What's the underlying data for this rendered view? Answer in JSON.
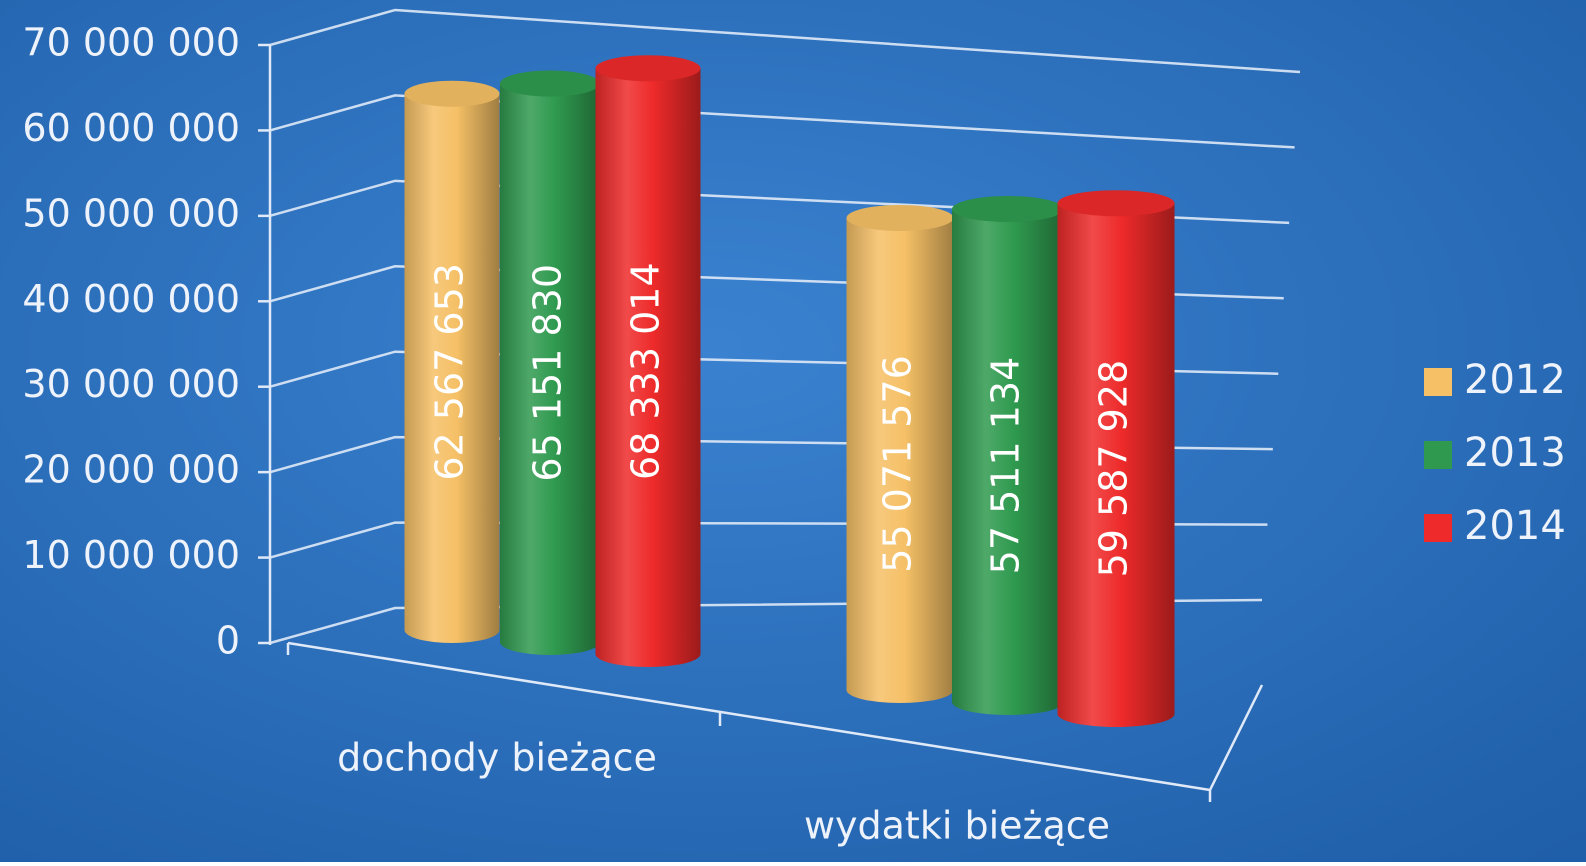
{
  "chart_data": {
    "type": "bar3d",
    "categories": [
      "dochody bieżące",
      "wydatki bieżące"
    ],
    "series": [
      {
        "name": "2012",
        "color": "#f5c066",
        "values": [
          62567653,
          55071576
        ],
        "value_labels": [
          "62 567 653",
          "55 071 576"
        ]
      },
      {
        "name": "2013",
        "color": "#2f9a4f",
        "values": [
          65151830,
          57511134
        ],
        "value_labels": [
          "65 151 830",
          "57 511 134"
        ]
      },
      {
        "name": "2014",
        "color": "#ee2a2a",
        "values": [
          68333014,
          59587928
        ],
        "value_labels": [
          "68 333 014",
          "59 587 928"
        ]
      }
    ],
    "ylim": [
      0,
      70000000
    ],
    "yticks": [
      {
        "value": 0,
        "label": "0"
      },
      {
        "value": 10000000,
        "label": "10 000 000"
      },
      {
        "value": 20000000,
        "label": "20 000 000"
      },
      {
        "value": 30000000,
        "label": "30 000 000"
      },
      {
        "value": 40000000,
        "label": "40 000 000"
      },
      {
        "value": 50000000,
        "label": "50 000 000"
      },
      {
        "value": 60000000,
        "label": "60 000 000"
      },
      {
        "value": 70000000,
        "label": "70 000 000"
      }
    ],
    "grid": true,
    "legend": "right"
  }
}
